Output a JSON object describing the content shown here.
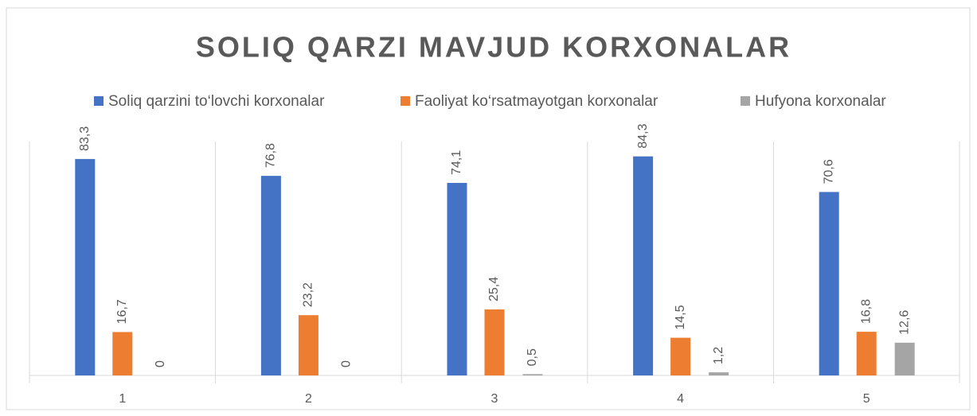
{
  "chart_data": {
    "type": "bar",
    "title": "SOLIQ QARZI MAVJUD KORXONALAR",
    "categories": [
      "1",
      "2",
      "3",
      "4",
      "5"
    ],
    "series": [
      {
        "name": "Soliq qarzini to‘lovchi korxonalar",
        "color": "#4472c4",
        "values": [
          83.3,
          76.8,
          74.1,
          84.3,
          70.6
        ],
        "value_labels": [
          "83,3",
          "76,8",
          "74,1",
          "84,3",
          "70,6"
        ]
      },
      {
        "name": "Faoliyat ko‘rsatmayotgan korxonalar",
        "color": "#ed7d31",
        "values": [
          16.7,
          23.2,
          25.4,
          14.5,
          16.8
        ],
        "value_labels": [
          "16,7",
          "23,2",
          "25,4",
          "14,5",
          "16,8"
        ]
      },
      {
        "name": "Hufyona korxonalar",
        "color": "#a5a5a5",
        "values": [
          0,
          0,
          0.5,
          1.2,
          12.6
        ],
        "value_labels": [
          "0",
          "0",
          "0,5",
          "1,2",
          "12,6"
        ]
      }
    ],
    "ylim": [
      0,
      90
    ],
    "legend": "top"
  }
}
